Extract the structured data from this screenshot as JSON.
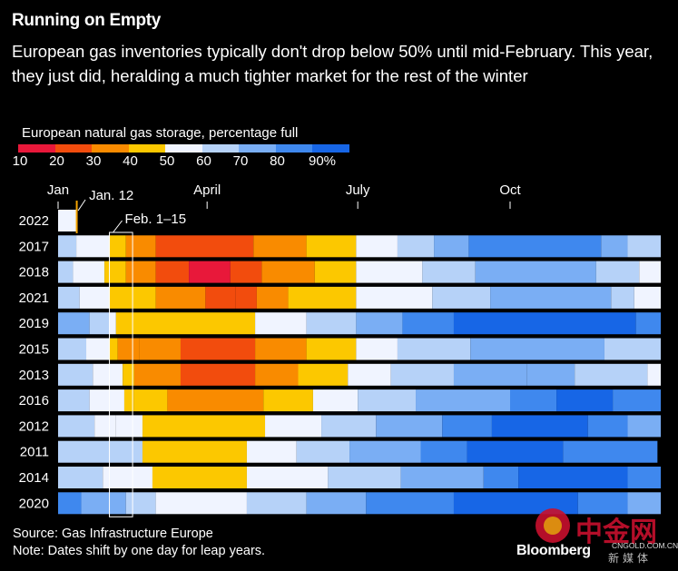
{
  "title": "Running on Empty",
  "subtitle": "European gas inventories typically don't drop below 50% until mid-February. This year, they just did, heralding a much tighter market for the rest of the winter",
  "legend": {
    "title": "European natural gas storage, percentage full",
    "ticks": [
      "10",
      "20",
      "30",
      "40",
      "50",
      "60",
      "70",
      "80",
      "90%"
    ],
    "colors": [
      "#e8183a",
      "#f24c0d",
      "#f98b00",
      "#fcc800",
      "#f0f4ff",
      "#b6d2f8",
      "#7aaef4",
      "#3f88ee",
      "#1766e6"
    ]
  },
  "source": "Source: Gas Infrastructure Europe",
  "note": "Note: Dates shift by one day for leap years.",
  "brand": "Bloomberg",
  "watermark": {
    "cn": "中金网",
    "url": "CNGOLD.COM.CN",
    "sub": "新媒体"
  },
  "chart_data": {
    "type": "heatmap",
    "title": "European natural gas storage, percentage full",
    "x_axis": {
      "ticks": [
        "Jan",
        "April",
        "July",
        "Oct"
      ],
      "range_days": [
        1,
        365
      ]
    },
    "annotations": [
      {
        "label": "Jan. 12",
        "row": "2022",
        "day": 12
      },
      {
        "label": "Feb. 1–15",
        "from_day": 32,
        "to_day": 46
      }
    ],
    "rows": [
      {
        "year": "2022",
        "segments": [
          {
            "start": 1,
            "end": 12,
            "value": 50
          }
        ]
      },
      {
        "year": "2017",
        "segments": [
          {
            "start": 1,
            "end": 12,
            "value": 62
          },
          {
            "start": 12,
            "end": 32,
            "value": 52
          },
          {
            "start": 32,
            "end": 42,
            "value": 42
          },
          {
            "start": 42,
            "end": 60,
            "value": 34
          },
          {
            "start": 60,
            "end": 119,
            "value": 25
          },
          {
            "start": 119,
            "end": 151,
            "value": 33
          },
          {
            "start": 151,
            "end": 181,
            "value": 42
          },
          {
            "start": 181,
            "end": 206,
            "value": 53
          },
          {
            "start": 206,
            "end": 228,
            "value": 63
          },
          {
            "start": 228,
            "end": 249,
            "value": 72
          },
          {
            "start": 249,
            "end": 329,
            "value": 84
          },
          {
            "start": 329,
            "end": 345,
            "value": 75
          },
          {
            "start": 345,
            "end": 365,
            "value": 63
          }
        ]
      },
      {
        "year": "2018",
        "segments": [
          {
            "start": 1,
            "end": 10,
            "value": 65
          },
          {
            "start": 10,
            "end": 29,
            "value": 55
          },
          {
            "start": 29,
            "end": 42,
            "value": 43
          },
          {
            "start": 42,
            "end": 60,
            "value": 36
          },
          {
            "start": 60,
            "end": 80,
            "value": 27
          },
          {
            "start": 80,
            "end": 105,
            "value": 14
          },
          {
            "start": 105,
            "end": 124,
            "value": 22
          },
          {
            "start": 124,
            "end": 156,
            "value": 32
          },
          {
            "start": 156,
            "end": 181,
            "value": 42
          },
          {
            "start": 181,
            "end": 221,
            "value": 53
          },
          {
            "start": 221,
            "end": 253,
            "value": 64
          },
          {
            "start": 253,
            "end": 326,
            "value": 73
          },
          {
            "start": 326,
            "end": 352,
            "value": 65
          },
          {
            "start": 352,
            "end": 365,
            "value": 56
          }
        ]
      },
      {
        "year": "2021",
        "segments": [
          {
            "start": 1,
            "end": 14,
            "value": 62
          },
          {
            "start": 14,
            "end": 32,
            "value": 53
          },
          {
            "start": 32,
            "end": 60,
            "value": 42
          },
          {
            "start": 60,
            "end": 90,
            "value": 34
          },
          {
            "start": 90,
            "end": 108,
            "value": 28
          },
          {
            "start": 108,
            "end": 121,
            "value": 23
          },
          {
            "start": 121,
            "end": 140,
            "value": 30
          },
          {
            "start": 140,
            "end": 181,
            "value": 40
          },
          {
            "start": 181,
            "end": 227,
            "value": 52
          },
          {
            "start": 227,
            "end": 262,
            "value": 63
          },
          {
            "start": 262,
            "end": 335,
            "value": 72
          },
          {
            "start": 335,
            "end": 349,
            "value": 62
          },
          {
            "start": 349,
            "end": 365,
            "value": 54
          }
        ]
      },
      {
        "year": "2019",
        "segments": [
          {
            "start": 1,
            "end": 20,
            "value": 72
          },
          {
            "start": 20,
            "end": 32,
            "value": 62
          },
          {
            "start": 32,
            "end": 36,
            "value": 52
          },
          {
            "start": 36,
            "end": 120,
            "value": 42
          },
          {
            "start": 120,
            "end": 151,
            "value": 55
          },
          {
            "start": 151,
            "end": 181,
            "value": 66
          },
          {
            "start": 181,
            "end": 209,
            "value": 74
          },
          {
            "start": 209,
            "end": 240,
            "value": 84
          },
          {
            "start": 240,
            "end": 350,
            "value": 93
          },
          {
            "start": 350,
            "end": 365,
            "value": 86
          }
        ]
      },
      {
        "year": "2015",
        "segments": [
          {
            "start": 1,
            "end": 18,
            "value": 65
          },
          {
            "start": 18,
            "end": 32,
            "value": 56
          },
          {
            "start": 32,
            "end": 37,
            "value": 46
          },
          {
            "start": 37,
            "end": 50,
            "value": 39
          },
          {
            "start": 50,
            "end": 75,
            "value": 32
          },
          {
            "start": 75,
            "end": 120,
            "value": 24
          },
          {
            "start": 120,
            "end": 151,
            "value": 32
          },
          {
            "start": 151,
            "end": 181,
            "value": 42
          },
          {
            "start": 181,
            "end": 206,
            "value": 54
          },
          {
            "start": 206,
            "end": 250,
            "value": 64
          },
          {
            "start": 250,
            "end": 331,
            "value": 74
          },
          {
            "start": 331,
            "end": 365,
            "value": 64
          }
        ]
      },
      {
        "year": "2013",
        "segments": [
          {
            "start": 1,
            "end": 22,
            "value": 62
          },
          {
            "start": 22,
            "end": 40,
            "value": 53
          },
          {
            "start": 40,
            "end": 47,
            "value": 44
          },
          {
            "start": 47,
            "end": 75,
            "value": 36
          },
          {
            "start": 75,
            "end": 120,
            "value": 27
          },
          {
            "start": 120,
            "end": 146,
            "value": 36
          },
          {
            "start": 146,
            "end": 176,
            "value": 44
          },
          {
            "start": 176,
            "end": 202,
            "value": 54
          },
          {
            "start": 202,
            "end": 240,
            "value": 62
          },
          {
            "start": 240,
            "end": 284,
            "value": 72
          },
          {
            "start": 284,
            "end": 313,
            "value": 78
          },
          {
            "start": 313,
            "end": 357,
            "value": 66
          },
          {
            "start": 357,
            "end": 365,
            "value": 57
          }
        ]
      },
      {
        "year": "2016",
        "segments": [
          {
            "start": 1,
            "end": 20,
            "value": 62
          },
          {
            "start": 20,
            "end": 41,
            "value": 53
          },
          {
            "start": 41,
            "end": 47,
            "value": 46
          },
          {
            "start": 47,
            "end": 67,
            "value": 40
          },
          {
            "start": 67,
            "end": 125,
            "value": 32
          },
          {
            "start": 125,
            "end": 155,
            "value": 42
          },
          {
            "start": 155,
            "end": 182,
            "value": 53
          },
          {
            "start": 182,
            "end": 217,
            "value": 64
          },
          {
            "start": 217,
            "end": 274,
            "value": 74
          },
          {
            "start": 274,
            "end": 302,
            "value": 84
          },
          {
            "start": 302,
            "end": 336,
            "value": 92
          },
          {
            "start": 336,
            "end": 365,
            "value": 82
          }
        ]
      },
      {
        "year": "2012",
        "segments": [
          {
            "start": 1,
            "end": 23,
            "value": 64
          },
          {
            "start": 23,
            "end": 36,
            "value": 56
          },
          {
            "start": 36,
            "end": 52,
            "value": 50
          },
          {
            "start": 52,
            "end": 126,
            "value": 42
          },
          {
            "start": 126,
            "end": 160,
            "value": 56
          },
          {
            "start": 160,
            "end": 193,
            "value": 64
          },
          {
            "start": 193,
            "end": 233,
            "value": 72
          },
          {
            "start": 233,
            "end": 263,
            "value": 82
          },
          {
            "start": 263,
            "end": 321,
            "value": 92
          },
          {
            "start": 321,
            "end": 345,
            "value": 82
          },
          {
            "start": 345,
            "end": 365,
            "value": 72
          }
        ]
      },
      {
        "year": "2011",
        "segments": [
          {
            "start": 1,
            "end": 52,
            "value": 62
          },
          {
            "start": 52,
            "end": 115,
            "value": 42
          },
          {
            "start": 115,
            "end": 145,
            "value": 56
          },
          {
            "start": 145,
            "end": 177,
            "value": 64
          },
          {
            "start": 177,
            "end": 220,
            "value": 74
          },
          {
            "start": 220,
            "end": 248,
            "value": 84
          },
          {
            "start": 248,
            "end": 306,
            "value": 93
          },
          {
            "start": 306,
            "end": 363,
            "value": 82
          }
        ]
      },
      {
        "year": "2014",
        "segments": [
          {
            "start": 1,
            "end": 28,
            "value": 62
          },
          {
            "start": 28,
            "end": 58,
            "value": 55
          },
          {
            "start": 58,
            "end": 115,
            "value": 42
          },
          {
            "start": 115,
            "end": 164,
            "value": 56
          },
          {
            "start": 164,
            "end": 208,
            "value": 66
          },
          {
            "start": 208,
            "end": 258,
            "value": 75
          },
          {
            "start": 258,
            "end": 279,
            "value": 84
          },
          {
            "start": 279,
            "end": 345,
            "value": 92
          },
          {
            "start": 345,
            "end": 365,
            "value": 82
          }
        ]
      },
      {
        "year": "2020",
        "segments": [
          {
            "start": 1,
            "end": 15,
            "value": 86
          },
          {
            "start": 15,
            "end": 42,
            "value": 72
          },
          {
            "start": 42,
            "end": 60,
            "value": 64
          },
          {
            "start": 60,
            "end": 115,
            "value": 55
          },
          {
            "start": 115,
            "end": 151,
            "value": 64
          },
          {
            "start": 151,
            "end": 187,
            "value": 74
          },
          {
            "start": 187,
            "end": 240,
            "value": 84
          },
          {
            "start": 240,
            "end": 315,
            "value": 93
          },
          {
            "start": 315,
            "end": 345,
            "value": 84
          },
          {
            "start": 345,
            "end": 365,
            "value": 72
          }
        ]
      }
    ]
  }
}
